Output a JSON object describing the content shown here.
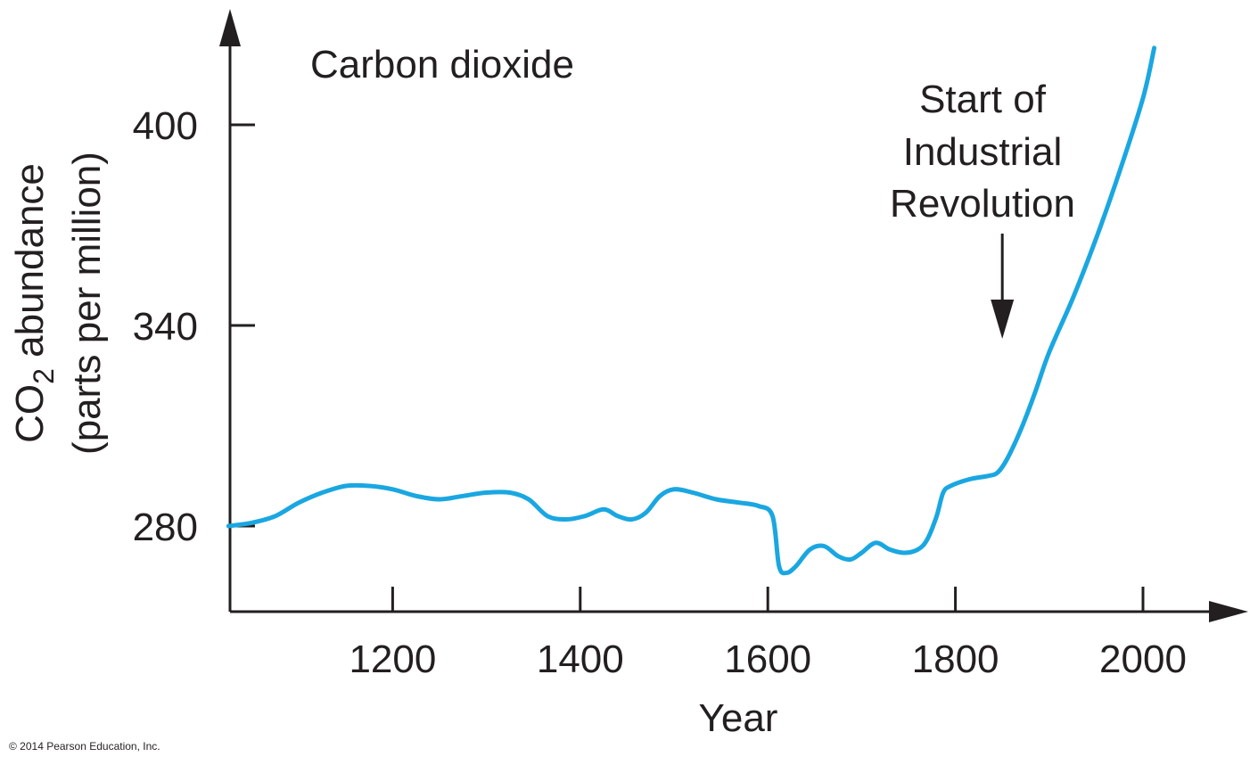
{
  "chart_data": {
    "type": "line",
    "title": "Carbon dioxide",
    "xlabel": "Year",
    "ylabel_line1_main": "CO",
    "ylabel_line1_sub": "2",
    "ylabel_line1_rest": " abundance",
    "ylabel_line2": "(parts per million)",
    "x_ticks": [
      1200,
      1400,
      1600,
      1800,
      2000
    ],
    "y_ticks": [
      280,
      340,
      400
    ],
    "xlim": [
      1025,
      2110
    ],
    "ylim": [
      255,
      430
    ],
    "series": [
      {
        "name": "CO2",
        "color": "#1aa7e1",
        "x": [
          1025,
          1050,
          1075,
          1100,
          1125,
          1150,
          1175,
          1200,
          1225,
          1250,
          1275,
          1300,
          1325,
          1345,
          1365,
          1385,
          1405,
          1425,
          1440,
          1455,
          1470,
          1485,
          1500,
          1520,
          1545,
          1570,
          1590,
          1605,
          1612,
          1620,
          1630,
          1645,
          1660,
          1675,
          1688,
          1700,
          1715,
          1730,
          1745,
          1760,
          1770,
          1780,
          1787,
          1795,
          1815,
          1835,
          1845,
          1855,
          1870,
          1885,
          1900,
          1925,
          1950,
          1975,
          2000,
          2012
        ],
        "values": [
          280,
          281,
          283,
          287,
          290,
          292,
          292,
          291,
          289,
          288,
          289,
          290,
          290,
          288,
          283,
          282,
          283,
          285,
          283,
          282,
          284,
          289,
          291,
          290,
          288,
          287,
          286,
          283,
          268,
          266,
          268,
          273,
          274,
          271,
          270,
          272,
          275,
          273,
          272,
          273,
          276,
          283,
          290,
          292,
          294,
          295,
          296,
          300,
          309,
          320,
          332,
          348,
          366,
          386,
          408,
          423
        ]
      }
    ],
    "annotations": [
      {
        "lines": [
          "Start of",
          "Industrial",
          "Revolution"
        ],
        "arrow_to_year": 1850
      }
    ]
  },
  "footer": {
    "copyright": "© 2014 Pearson Education, Inc."
  }
}
